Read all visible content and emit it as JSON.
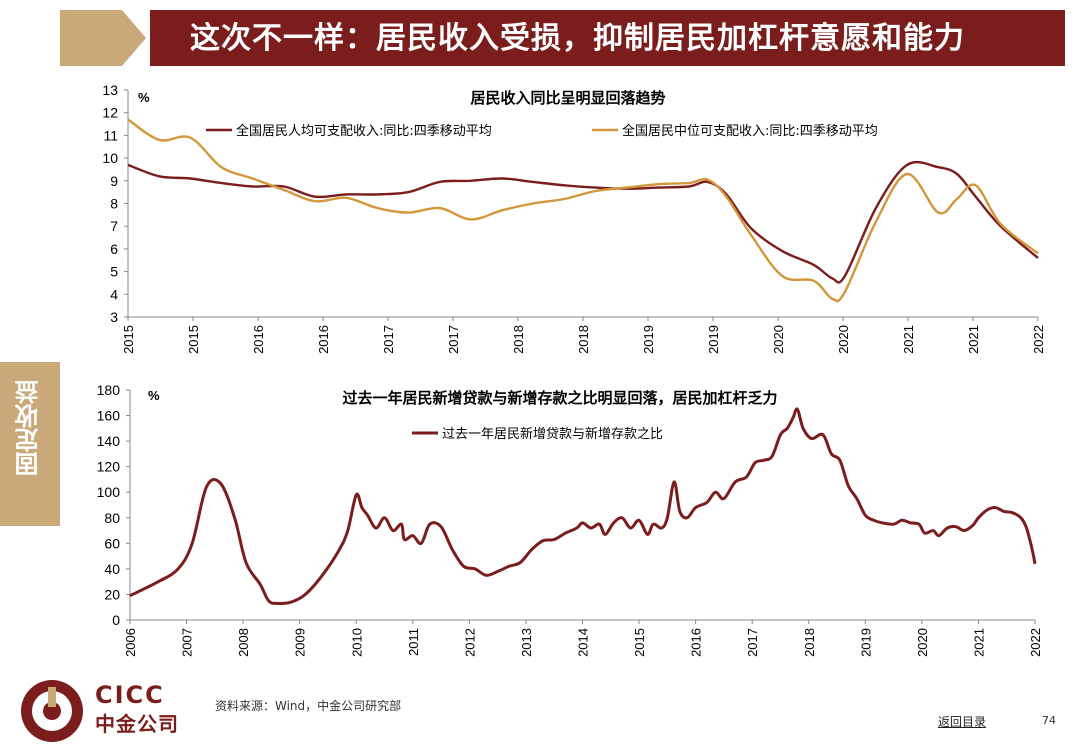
{
  "header": {
    "title": "这次不一样：居民收入受损，抑制居民加杠杆意愿和能力"
  },
  "side_tab": {
    "label": "固定收益"
  },
  "footer": {
    "source": "资料来源：Wind，中金公司研究部",
    "back_link": "返回目录",
    "page_number": "74",
    "logo_en": "CICC",
    "logo_cn": "中金公司"
  },
  "colors": {
    "brand": "#7a1d1c",
    "gold": "#d3973a",
    "tab": "#c9a87a"
  },
  "chart_data": [
    {
      "type": "line",
      "title": "居民收入同比呈明显回落趋势",
      "unit": "%",
      "ylim": [
        3,
        13
      ],
      "yticks": [
        3,
        4,
        5,
        6,
        7,
        8,
        9,
        10,
        11,
        12,
        13
      ],
      "xticks": [
        "2015",
        "2015",
        "2016",
        "2016",
        "2017",
        "2017",
        "2018",
        "2018",
        "2019",
        "2019",
        "2020",
        "2020",
        "2021",
        "2021",
        "2022"
      ],
      "xlim": [
        0,
        14.6
      ],
      "legend_position": "top",
      "series": [
        {
          "name": "全国居民人均可支配收入:同比:四季移动平均",
          "color": "#7a1d1c",
          "points": [
            [
              0,
              9.7
            ],
            [
              0.5,
              9.2
            ],
            [
              1,
              9.1
            ],
            [
              1.5,
              8.9
            ],
            [
              2,
              8.75
            ],
            [
              2.5,
              8.75
            ],
            [
              3,
              8.3
            ],
            [
              3.5,
              8.4
            ],
            [
              4,
              8.4
            ],
            [
              4.5,
              8.5
            ],
            [
              5,
              8.95
            ],
            [
              5.5,
              9.0
            ],
            [
              6,
              9.1
            ],
            [
              6.5,
              8.95
            ],
            [
              7,
              8.8
            ],
            [
              7.5,
              8.7
            ],
            [
              8,
              8.65
            ],
            [
              8.5,
              8.7
            ],
            [
              9,
              8.75
            ],
            [
              9.3,
              8.95
            ],
            [
              9.6,
              8.4
            ],
            [
              10,
              6.9
            ],
            [
              10.5,
              5.9
            ],
            [
              11,
              5.3
            ],
            [
              11.3,
              4.7
            ],
            [
              11.5,
              4.8
            ],
            [
              12,
              7.8
            ],
            [
              12.5,
              9.7
            ],
            [
              13,
              9.6
            ],
            [
              13.3,
              9.3
            ],
            [
              13.6,
              8.3
            ],
            [
              14,
              7.0
            ],
            [
              14.6,
              5.6
            ]
          ]
        },
        {
          "name": "全国居民中位可支配收入:同比:四季移动平均",
          "color": "#d3973a",
          "points": [
            [
              0,
              11.7
            ],
            [
              0.5,
              10.8
            ],
            [
              1,
              10.9
            ],
            [
              1.5,
              9.6
            ],
            [
              2,
              9.1
            ],
            [
              2.5,
              8.6
            ],
            [
              3,
              8.1
            ],
            [
              3.5,
              8.25
            ],
            [
              4,
              7.8
            ],
            [
              4.5,
              7.6
            ],
            [
              5,
              7.8
            ],
            [
              5.5,
              7.3
            ],
            [
              6,
              7.7
            ],
            [
              6.5,
              8.0
            ],
            [
              7,
              8.2
            ],
            [
              7.5,
              8.55
            ],
            [
              8,
              8.7
            ],
            [
              8.5,
              8.85
            ],
            [
              9,
              8.9
            ],
            [
              9.3,
              9.05
            ],
            [
              9.6,
              8.3
            ],
            [
              10,
              6.6
            ],
            [
              10.5,
              4.8
            ],
            [
              11,
              4.6
            ],
            [
              11.3,
              3.8
            ],
            [
              11.5,
              4.1
            ],
            [
              12,
              7.2
            ],
            [
              12.5,
              9.3
            ],
            [
              13,
              7.6
            ],
            [
              13.3,
              8.2
            ],
            [
              13.6,
              8.8
            ],
            [
              14,
              7.1
            ],
            [
              14.6,
              5.8
            ]
          ]
        }
      ]
    },
    {
      "type": "line",
      "title": "过去一年居民新增贷款与新增存款之比明显回落，居民加杠杆乏力",
      "unit": "%",
      "ylim": [
        0,
        180
      ],
      "yticks": [
        0,
        20,
        40,
        60,
        80,
        100,
        120,
        140,
        160,
        180
      ],
      "xticks": [
        "2006",
        "2007",
        "2008",
        "2009",
        "2010",
        "2011",
        "2012",
        "2013",
        "2014",
        "2015",
        "2016",
        "2017",
        "2018",
        "2019",
        "2020",
        "2021",
        "2022"
      ],
      "xlim": [
        2006,
        2022
      ],
      "legend_position": "top",
      "series": [
        {
          "name": "过去一年居民新增贷款与新增存款之比",
          "color": "#7a1d1c",
          "points": [
            [
              2006,
              19
            ],
            [
              2006.5,
              30
            ],
            [
              2006.85,
              40
            ],
            [
              2007.1,
              60
            ],
            [
              2007.35,
              104
            ],
            [
              2007.6,
              107
            ],
            [
              2007.85,
              80
            ],
            [
              2008.05,
              45
            ],
            [
              2008.3,
              28
            ],
            [
              2008.45,
              15
            ],
            [
              2008.6,
              13
            ],
            [
              2008.85,
              14
            ],
            [
              2009.1,
              20
            ],
            [
              2009.4,
              35
            ],
            [
              2009.7,
              55
            ],
            [
              2009.85,
              70
            ],
            [
              2010,
              98
            ],
            [
              2010.1,
              88
            ],
            [
              2010.2,
              82
            ],
            [
              2010.35,
              72
            ],
            [
              2010.5,
              80
            ],
            [
              2010.65,
              70
            ],
            [
              2010.8,
              75
            ],
            [
              2010.85,
              63
            ],
            [
              2011,
              66
            ],
            [
              2011.15,
              60
            ],
            [
              2011.3,
              75
            ],
            [
              2011.5,
              73
            ],
            [
              2011.7,
              55
            ],
            [
              2011.9,
              42
            ],
            [
              2012.1,
              40
            ],
            [
              2012.3,
              35
            ],
            [
              2012.5,
              38
            ],
            [
              2012.7,
              42
            ],
            [
              2012.9,
              45
            ],
            [
              2013.1,
              55
            ],
            [
              2013.3,
              62
            ],
            [
              2013.5,
              63
            ],
            [
              2013.7,
              68
            ],
            [
              2013.9,
              72
            ],
            [
              2014,
              76
            ],
            [
              2014.15,
              72
            ],
            [
              2014.3,
              75
            ],
            [
              2014.4,
              67
            ],
            [
              2014.55,
              76
            ],
            [
              2014.7,
              80
            ],
            [
              2014.85,
              72
            ],
            [
              2015,
              78
            ],
            [
              2015.15,
              67
            ],
            [
              2015.25,
              75
            ],
            [
              2015.4,
              72
            ],
            [
              2015.5,
              80
            ],
            [
              2015.62,
              108
            ],
            [
              2015.72,
              85
            ],
            [
              2015.85,
              80
            ],
            [
              2016,
              88
            ],
            [
              2016.2,
              92
            ],
            [
              2016.35,
              100
            ],
            [
              2016.5,
              95
            ],
            [
              2016.7,
              108
            ],
            [
              2016.9,
              112
            ],
            [
              2017.05,
              123
            ],
            [
              2017.2,
              125
            ],
            [
              2017.35,
              128
            ],
            [
              2017.5,
              145
            ],
            [
              2017.62,
              150
            ],
            [
              2017.72,
              158
            ],
            [
              2017.8,
              165
            ],
            [
              2017.9,
              150
            ],
            [
              2018.05,
              142
            ],
            [
              2018.25,
              145
            ],
            [
              2018.4,
              130
            ],
            [
              2018.55,
              125
            ],
            [
              2018.7,
              105
            ],
            [
              2018.85,
              95
            ],
            [
              2019,
              82
            ],
            [
              2019.15,
              78
            ],
            [
              2019.3,
              76
            ],
            [
              2019.5,
              75
            ],
            [
              2019.65,
              78
            ],
            [
              2019.8,
              76
            ],
            [
              2019.95,
              75
            ],
            [
              2020.05,
              68
            ],
            [
              2020.2,
              70
            ],
            [
              2020.3,
              66
            ],
            [
              2020.45,
              72
            ],
            [
              2020.6,
              73
            ],
            [
              2020.75,
              70
            ],
            [
              2020.9,
              74
            ],
            [
              2021,
              80
            ],
            [
              2021.15,
              86
            ],
            [
              2021.3,
              88
            ],
            [
              2021.45,
              85
            ],
            [
              2021.6,
              84
            ],
            [
              2021.75,
              80
            ],
            [
              2021.85,
              72
            ],
            [
              2021.95,
              55
            ],
            [
              2022,
              44
            ]
          ]
        }
      ]
    }
  ]
}
